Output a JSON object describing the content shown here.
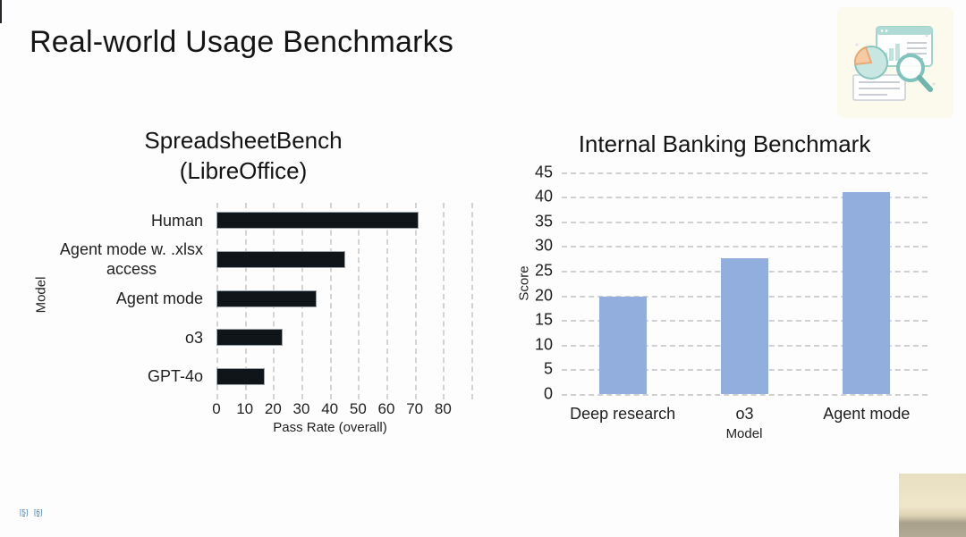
{
  "page": {
    "title": "Real-world Usage Benchmarks"
  },
  "header_icon": {
    "name": "data-analysis-illustration",
    "background": "#FBFAEC",
    "teal": "#84C5BD",
    "teal_light": "#C9E7E2",
    "orange": "#F6CBA4",
    "orange_stroke": "#E8A977",
    "line_gray": "#C9CED4"
  },
  "chart_data": [
    {
      "type": "bar",
      "orientation": "horizontal",
      "title_lines": [
        "SpreadsheetBench",
        "(LibreOffice)"
      ],
      "categories": [
        "Human",
        "Agent mode w. .xlsx\naccess",
        "Agent mode",
        "o3",
        "GPT-4o"
      ],
      "values": [
        71.3,
        45.5,
        35.5,
        23.5,
        17.0
      ],
      "xlabel": "Pass Rate (overall)",
      "ylabel": "Model",
      "xlim": [
        0,
        90
      ],
      "xticks": [
        0,
        10,
        20,
        30,
        40,
        50,
        60,
        70,
        80
      ],
      "bar_color": "#10151A",
      "grid": "vertical-dashed",
      "legend": "none"
    },
    {
      "type": "bar",
      "orientation": "vertical",
      "title": "Internal Banking Benchmark",
      "categories": [
        "Deep research",
        "o3",
        "Agent mode"
      ],
      "values": [
        19.7,
        27.5,
        41.0
      ],
      "xlabel": "Model",
      "ylabel": "Score",
      "ylim": [
        0,
        45
      ],
      "yticks": [
        0,
        5,
        10,
        15,
        20,
        25,
        30,
        35,
        40,
        45
      ],
      "bar_color": "#91AEDC",
      "grid": "horizontal-dashed",
      "legend": "none"
    }
  ],
  "footer": {
    "citations": [
      "[5]",
      "[6]"
    ],
    "link_color": "#3B74C6"
  },
  "webcam_corner": {
    "top_color": "#EBE1C5",
    "bottom_color": "#A9A08C"
  }
}
